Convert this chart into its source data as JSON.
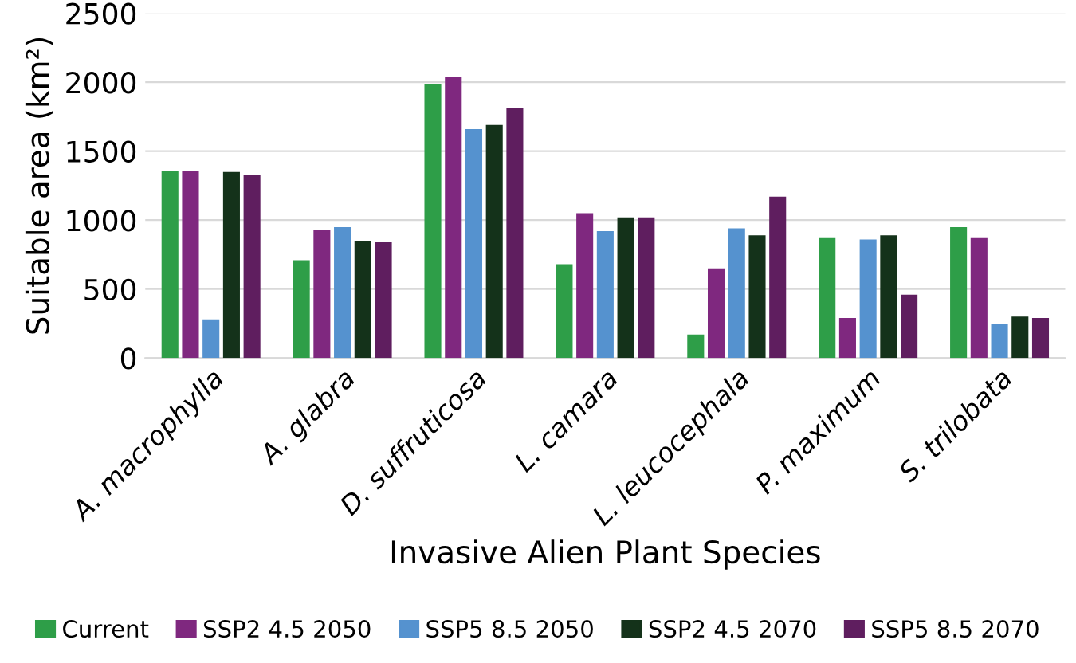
{
  "chart_data": {
    "type": "bar",
    "xlabel": "Invasive Alien Plant Species",
    "ylabel": "Suitable area (km²)",
    "categories": [
      "A. macrophylla",
      "A. glabra",
      "D. suffruticosa",
      "L. camara",
      "L. leucocephala",
      "P. maximum",
      "S. trilobata"
    ],
    "series": [
      {
        "name": "Current",
        "color": "#2e9e48",
        "values": [
          1360,
          710,
          1990,
          680,
          170,
          870,
          950
        ]
      },
      {
        "name": "SSP2 4.5 2050",
        "color": "#7f287f",
        "values": [
          1360,
          930,
          2040,
          1050,
          650,
          290,
          870
        ]
      },
      {
        "name": "SSP5 8.5 2050",
        "color": "#5592cf",
        "values": [
          280,
          950,
          1660,
          920,
          940,
          860,
          250
        ]
      },
      {
        "name": "SSP2 4.5 2070",
        "color": "#14321a",
        "values": [
          1350,
          850,
          1690,
          1020,
          890,
          890,
          300
        ]
      },
      {
        "name": "SSP5 8.5 2070",
        "color": "#5f1e5f",
        "values": [
          1330,
          840,
          1810,
          1020,
          1170,
          460,
          290
        ]
      }
    ],
    "ylim": [
      0,
      2500
    ],
    "yticks": [
      0,
      500,
      1000,
      1500,
      2000,
      2500
    ],
    "grid": "y",
    "legend": "bottom"
  }
}
